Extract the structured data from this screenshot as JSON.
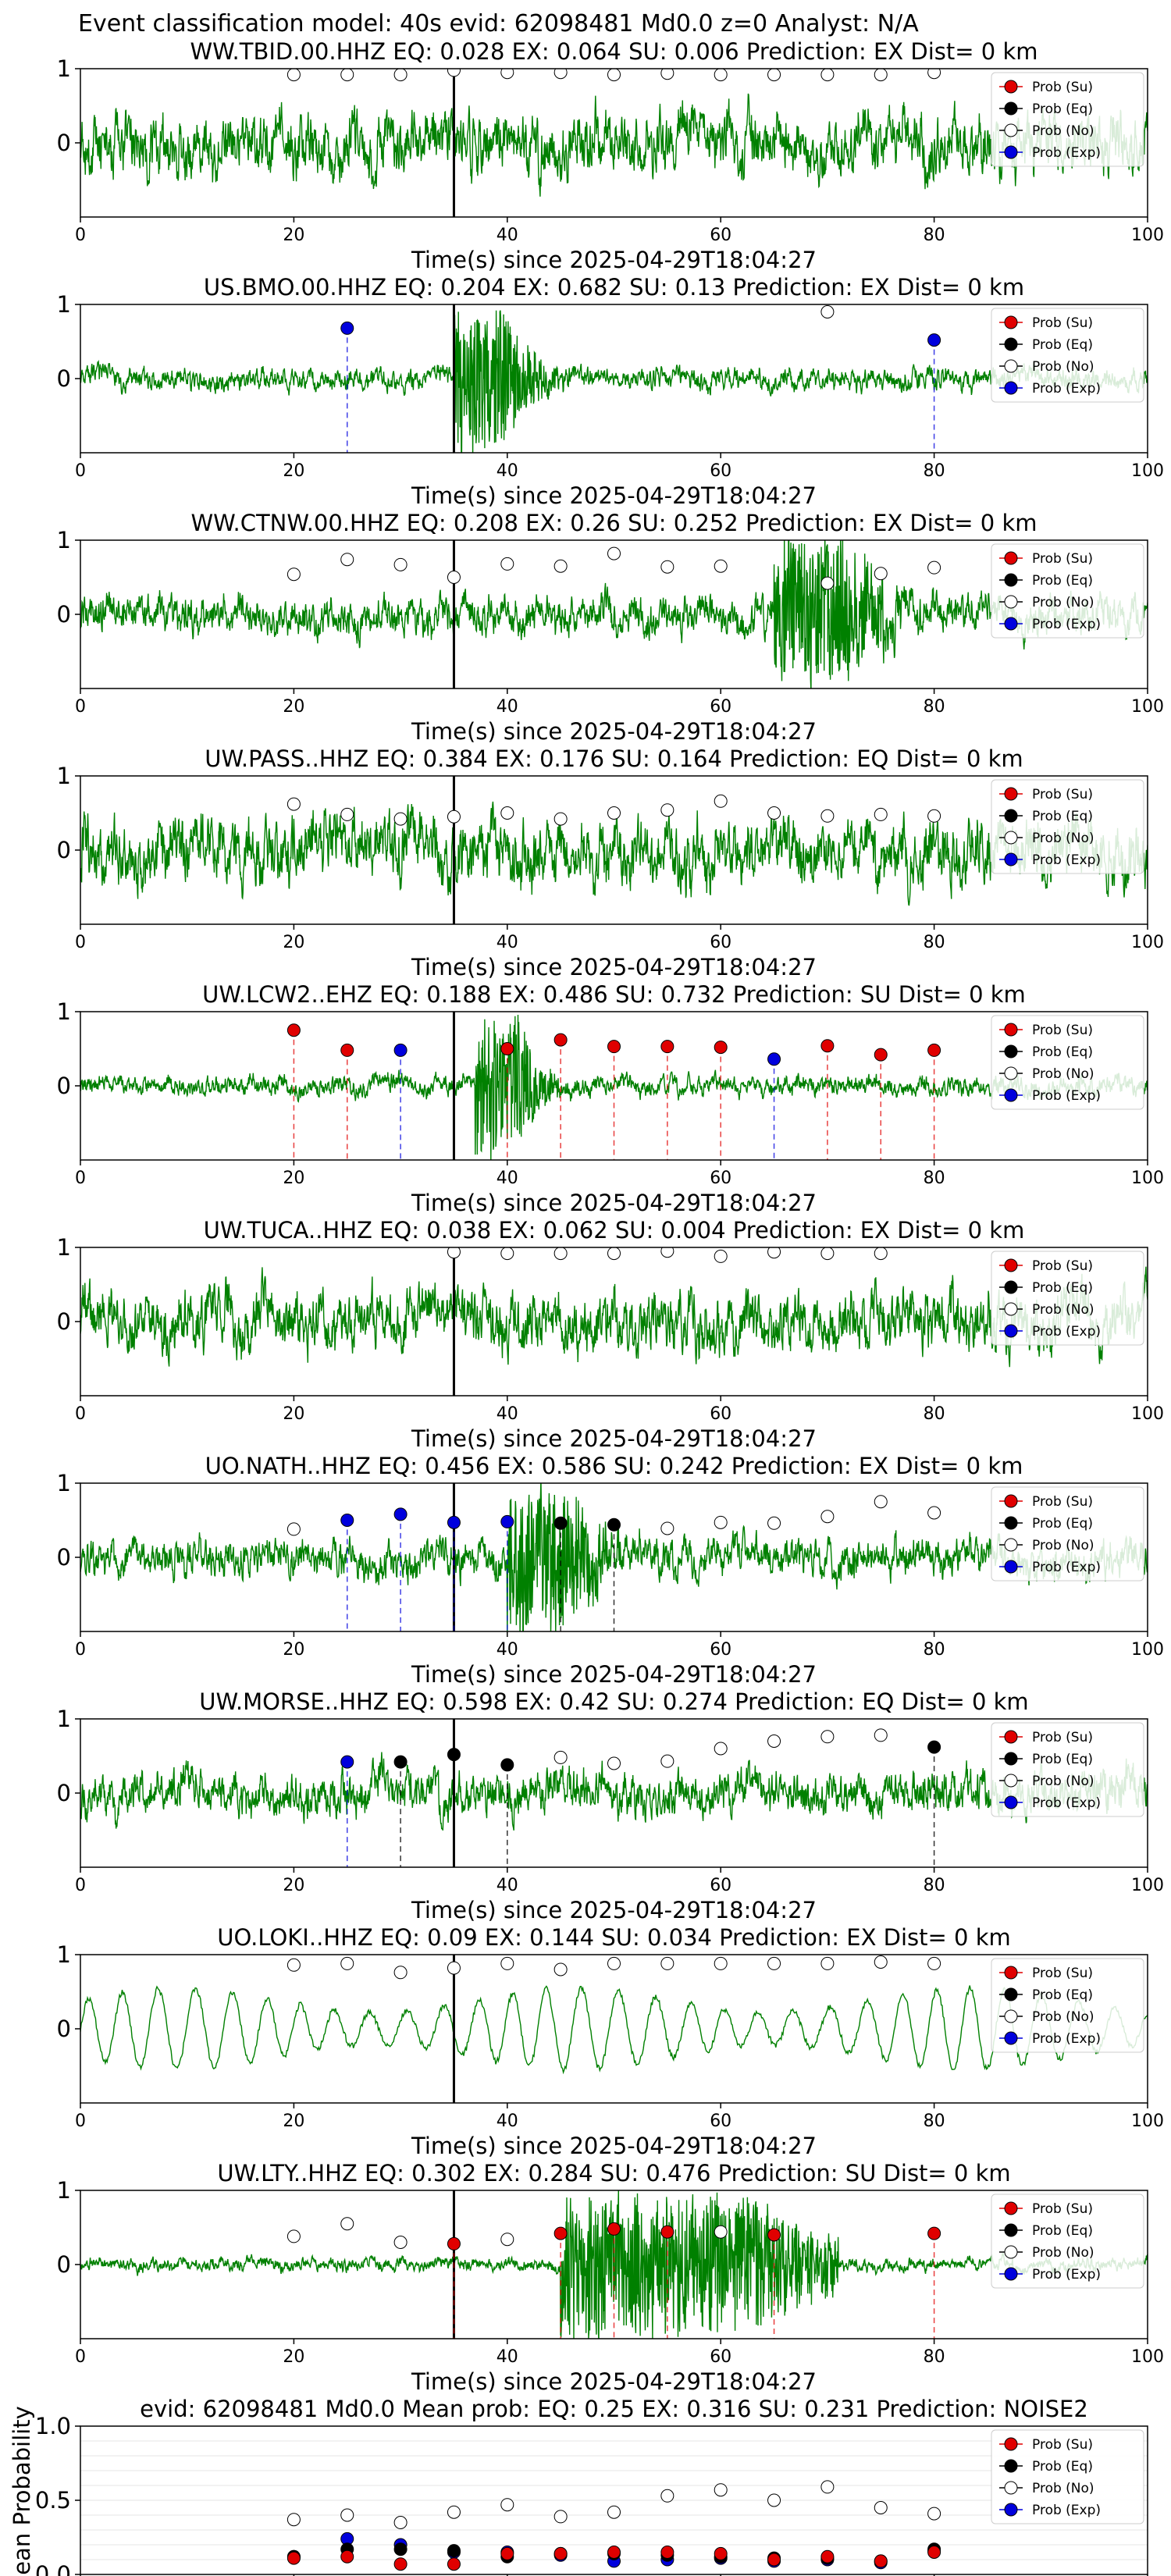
{
  "suptitle": "Event classification model: 40s evid: 62098481 Md0.0 z=0 Analyst: N/A",
  "colors": {
    "waveform": "#008000",
    "su": "#e00000",
    "eq": "#000000",
    "no": "#ffffff",
    "exp": "#0000dd",
    "pick": "#000000"
  },
  "legend": {
    "position": "top-right",
    "entries": [
      {
        "key": "su",
        "label": "Prob (Su)"
      },
      {
        "key": "eq",
        "label": "Prob (Eq)"
      },
      {
        "key": "no",
        "label": "Prob (No)"
      },
      {
        "key": "exp",
        "label": "Prob (Exp)"
      }
    ]
  },
  "chart_data": [
    {
      "type": "scatter",
      "title": "WW.TBID.00.HHZ   EQ: 0.028  EX: 0.064  SU: 0.006   Prediction: EX    Dist= 0 km",
      "xlabel": "Time(s) since 2025-04-29T18:04:27",
      "xlim": [
        0,
        100
      ],
      "ylim": [
        -1,
        1
      ],
      "xticks": [
        "0",
        "20",
        "40",
        "60",
        "80",
        "100"
      ],
      "yticks": [
        "0",
        "1"
      ],
      "pick_time": 35,
      "waveform_amp": 0.55,
      "waveform_style": "broadband",
      "points": [
        {
          "t": 20,
          "cls": "no",
          "p": 0.92
        },
        {
          "t": 25,
          "cls": "no",
          "p": 0.92
        },
        {
          "t": 30,
          "cls": "no",
          "p": 0.92
        },
        {
          "t": 35,
          "cls": "no",
          "p": 0.98
        },
        {
          "t": 40,
          "cls": "no",
          "p": 0.95
        },
        {
          "t": 45,
          "cls": "no",
          "p": 0.95
        },
        {
          "t": 50,
          "cls": "no",
          "p": 0.92
        },
        {
          "t": 55,
          "cls": "no",
          "p": 0.94
        },
        {
          "t": 60,
          "cls": "no",
          "p": 0.92
        },
        {
          "t": 65,
          "cls": "no",
          "p": 0.92
        },
        {
          "t": 70,
          "cls": "no",
          "p": 0.92
        },
        {
          "t": 75,
          "cls": "no",
          "p": 0.92
        },
        {
          "t": 80,
          "cls": "no",
          "p": 0.95
        }
      ]
    },
    {
      "type": "scatter",
      "title": "US.BMO.00.HHZ   EQ: 0.204  EX: 0.682  SU: 0.13   Prediction: EX    Dist= 0 km",
      "xlabel": "Time(s) since 2025-04-29T18:04:27",
      "xlim": [
        0,
        100
      ],
      "ylim": [
        -1,
        1
      ],
      "xticks": [
        "0",
        "20",
        "40",
        "60",
        "80",
        "100"
      ],
      "yticks": [
        "0",
        "1"
      ],
      "pick_time": 35,
      "waveform_amp": 0.2,
      "waveform_style": "burst",
      "burst": [
        35,
        40
      ],
      "points": [
        {
          "t": 25,
          "cls": "exp",
          "p": 0.68
        },
        {
          "t": 70,
          "cls": "no",
          "p": 0.9
        },
        {
          "t": 80,
          "cls": "exp",
          "p": 0.52
        }
      ]
    },
    {
      "type": "scatter",
      "title": "WW.CTNW.00.HHZ   EQ: 0.208  EX: 0.26  SU: 0.252   Prediction: EX    Dist= 0 km",
      "xlabel": "Time(s) since 2025-04-29T18:04:27",
      "xlim": [
        0,
        100
      ],
      "ylim": [
        -1,
        1
      ],
      "xticks": [
        "0",
        "20",
        "40",
        "60",
        "80",
        "100"
      ],
      "yticks": [
        "0",
        "1"
      ],
      "pick_time": 35,
      "waveform_amp": 0.35,
      "waveform_style": "burst",
      "burst": [
        65,
        72
      ],
      "points": [
        {
          "t": 20,
          "cls": "no",
          "p": 0.54
        },
        {
          "t": 25,
          "cls": "no",
          "p": 0.74
        },
        {
          "t": 30,
          "cls": "no",
          "p": 0.67
        },
        {
          "t": 35,
          "cls": "no",
          "p": 0.5
        },
        {
          "t": 40,
          "cls": "no",
          "p": 0.68
        },
        {
          "t": 45,
          "cls": "no",
          "p": 0.65
        },
        {
          "t": 50,
          "cls": "no",
          "p": 0.82
        },
        {
          "t": 55,
          "cls": "no",
          "p": 0.64
        },
        {
          "t": 60,
          "cls": "no",
          "p": 0.65
        },
        {
          "t": 70,
          "cls": "no",
          "p": 0.42
        },
        {
          "t": 75,
          "cls": "no",
          "p": 0.55
        },
        {
          "t": 80,
          "cls": "no",
          "p": 0.63
        }
      ]
    },
    {
      "type": "scatter",
      "title": "UW.PASS..HHZ   EQ: 0.384  EX: 0.176  SU: 0.164   Prediction: EQ    Dist= 0 km",
      "xlabel": "Time(s) since 2025-04-29T18:04:27",
      "xlim": [
        0,
        100
      ],
      "ylim": [
        -1,
        1
      ],
      "xticks": [
        "0",
        "20",
        "40",
        "60",
        "80",
        "100"
      ],
      "yticks": [
        "0",
        "1"
      ],
      "pick_time": 35,
      "waveform_amp": 0.6,
      "waveform_style": "broadband",
      "points": [
        {
          "t": 20,
          "cls": "no",
          "p": 0.62
        },
        {
          "t": 25,
          "cls": "no",
          "p": 0.48
        },
        {
          "t": 30,
          "cls": "no",
          "p": 0.42
        },
        {
          "t": 35,
          "cls": "no",
          "p": 0.45
        },
        {
          "t": 40,
          "cls": "no",
          "p": 0.5
        },
        {
          "t": 45,
          "cls": "no",
          "p": 0.42
        },
        {
          "t": 50,
          "cls": "no",
          "p": 0.5
        },
        {
          "t": 55,
          "cls": "no",
          "p": 0.54
        },
        {
          "t": 60,
          "cls": "no",
          "p": 0.66
        },
        {
          "t": 65,
          "cls": "no",
          "p": 0.5
        },
        {
          "t": 70,
          "cls": "no",
          "p": 0.46
        },
        {
          "t": 75,
          "cls": "no",
          "p": 0.48
        },
        {
          "t": 80,
          "cls": "no",
          "p": 0.46
        }
      ]
    },
    {
      "type": "scatter",
      "title": "UW.LCW2..EHZ   EQ: 0.188  EX: 0.486  SU: 0.732   Prediction: SU    Dist= 0 km",
      "xlabel": "Time(s) since 2025-04-29T18:04:27",
      "xlim": [
        0,
        100
      ],
      "ylim": [
        -1,
        1
      ],
      "xticks": [
        "0",
        "20",
        "40",
        "60",
        "80",
        "100"
      ],
      "yticks": [
        "0",
        "1"
      ],
      "pick_time": 35,
      "waveform_amp": 0.18,
      "waveform_style": "burst",
      "burst": [
        37,
        41
      ],
      "points": [
        {
          "t": 20,
          "cls": "su",
          "p": 0.75
        },
        {
          "t": 25,
          "cls": "su",
          "p": 0.48
        },
        {
          "t": 30,
          "cls": "exp",
          "p": 0.48
        },
        {
          "t": 40,
          "cls": "su",
          "p": 0.5
        },
        {
          "t": 45,
          "cls": "su",
          "p": 0.62
        },
        {
          "t": 50,
          "cls": "su",
          "p": 0.53
        },
        {
          "t": 55,
          "cls": "su",
          "p": 0.53
        },
        {
          "t": 60,
          "cls": "su",
          "p": 0.52
        },
        {
          "t": 65,
          "cls": "exp",
          "p": 0.36
        },
        {
          "t": 70,
          "cls": "su",
          "p": 0.54
        },
        {
          "t": 75,
          "cls": "su",
          "p": 0.42
        },
        {
          "t": 80,
          "cls": "su",
          "p": 0.48
        }
      ]
    },
    {
      "type": "scatter",
      "title": "UW.TUCA..HHZ   EQ: 0.038  EX: 0.062  SU: 0.004   Prediction: EX    Dist= 0 km",
      "xlabel": "Time(s) since 2025-04-29T18:04:27",
      "xlim": [
        0,
        100
      ],
      "ylim": [
        -1,
        1
      ],
      "xticks": [
        "0",
        "20",
        "40",
        "60",
        "80",
        "100"
      ],
      "yticks": [
        "0",
        "1"
      ],
      "pick_time": 35,
      "waveform_amp": 0.55,
      "waveform_style": "broadband",
      "points": [
        {
          "t": 35,
          "cls": "no",
          "p": 0.94
        },
        {
          "t": 40,
          "cls": "no",
          "p": 0.92
        },
        {
          "t": 45,
          "cls": "no",
          "p": 0.92
        },
        {
          "t": 50,
          "cls": "no",
          "p": 0.92
        },
        {
          "t": 55,
          "cls": "no",
          "p": 0.95
        },
        {
          "t": 60,
          "cls": "no",
          "p": 0.88
        },
        {
          "t": 65,
          "cls": "no",
          "p": 0.94
        },
        {
          "t": 70,
          "cls": "no",
          "p": 0.92
        },
        {
          "t": 75,
          "cls": "no",
          "p": 0.92
        }
      ]
    },
    {
      "type": "scatter",
      "title": "UO.NATH..HHZ   EQ: 0.456  EX: 0.586  SU: 0.242   Prediction: EX    Dist= 0 km",
      "xlabel": "Time(s) since 2025-04-29T18:04:27",
      "xlim": [
        0,
        100
      ],
      "ylim": [
        -1,
        1
      ],
      "xticks": [
        "0",
        "20",
        "40",
        "60",
        "80",
        "100"
      ],
      "yticks": [
        "0",
        "1"
      ],
      "pick_time": 35,
      "waveform_amp": 0.35,
      "waveform_style": "burst",
      "burst": [
        40,
        46
      ],
      "points": [
        {
          "t": 20,
          "cls": "no",
          "p": 0.38
        },
        {
          "t": 25,
          "cls": "exp",
          "p": 0.5
        },
        {
          "t": 30,
          "cls": "exp",
          "p": 0.58
        },
        {
          "t": 35,
          "cls": "exp",
          "p": 0.47
        },
        {
          "t": 40,
          "cls": "exp",
          "p": 0.48
        },
        {
          "t": 45,
          "cls": "eq",
          "p": 0.46
        },
        {
          "t": 50,
          "cls": "eq",
          "p": 0.44
        },
        {
          "t": 55,
          "cls": "no",
          "p": 0.39
        },
        {
          "t": 60,
          "cls": "no",
          "p": 0.47
        },
        {
          "t": 65,
          "cls": "no",
          "p": 0.46
        },
        {
          "t": 70,
          "cls": "no",
          "p": 0.55
        },
        {
          "t": 75,
          "cls": "no",
          "p": 0.75
        },
        {
          "t": 80,
          "cls": "no",
          "p": 0.6
        }
      ]
    },
    {
      "type": "scatter",
      "title": "UW.MORSE..HHZ   EQ: 0.598  EX: 0.42  SU: 0.274   Prediction: EQ    Dist= 0 km",
      "xlabel": "Time(s) since 2025-04-29T18:04:27",
      "xlim": [
        0,
        100
      ],
      "ylim": [
        -1,
        1
      ],
      "xticks": [
        "0",
        "20",
        "40",
        "60",
        "80",
        "100"
      ],
      "yticks": [
        "0",
        "1"
      ],
      "pick_time": 35,
      "waveform_amp": 0.4,
      "waveform_style": "broadband",
      "points": [
        {
          "t": 25,
          "cls": "exp",
          "p": 0.42
        },
        {
          "t": 30,
          "cls": "eq",
          "p": 0.42
        },
        {
          "t": 35,
          "cls": "eq",
          "p": 0.52
        },
        {
          "t": 40,
          "cls": "eq",
          "p": 0.38
        },
        {
          "t": 45,
          "cls": "no",
          "p": 0.48
        },
        {
          "t": 50,
          "cls": "no",
          "p": 0.4
        },
        {
          "t": 55,
          "cls": "no",
          "p": 0.43
        },
        {
          "t": 60,
          "cls": "no",
          "p": 0.6
        },
        {
          "t": 65,
          "cls": "no",
          "p": 0.7
        },
        {
          "t": 70,
          "cls": "no",
          "p": 0.76
        },
        {
          "t": 75,
          "cls": "no",
          "p": 0.78
        },
        {
          "t": 80,
          "cls": "eq",
          "p": 0.62
        }
      ]
    },
    {
      "type": "scatter",
      "title": "UO.LOKI..HHZ   EQ: 0.09  EX: 0.144  SU: 0.034   Prediction: EX    Dist= 0 km",
      "xlabel": "Time(s) since 2025-04-29T18:04:27",
      "xlim": [
        0,
        100
      ],
      "ylim": [
        -1,
        1
      ],
      "xticks": [
        "0",
        "20",
        "40",
        "60",
        "80",
        "100"
      ],
      "yticks": [
        "0",
        "1"
      ],
      "pick_time": 35,
      "waveform_amp": 0.55,
      "waveform_style": "smooth",
      "points": [
        {
          "t": 20,
          "cls": "no",
          "p": 0.86
        },
        {
          "t": 25,
          "cls": "no",
          "p": 0.88
        },
        {
          "t": 30,
          "cls": "no",
          "p": 0.76
        },
        {
          "t": 35,
          "cls": "no",
          "p": 0.82
        },
        {
          "t": 40,
          "cls": "no",
          "p": 0.88
        },
        {
          "t": 45,
          "cls": "no",
          "p": 0.8
        },
        {
          "t": 50,
          "cls": "no",
          "p": 0.88
        },
        {
          "t": 55,
          "cls": "no",
          "p": 0.88
        },
        {
          "t": 60,
          "cls": "no",
          "p": 0.88
        },
        {
          "t": 65,
          "cls": "no",
          "p": 0.88
        },
        {
          "t": 70,
          "cls": "no",
          "p": 0.88
        },
        {
          "t": 75,
          "cls": "no",
          "p": 0.9
        },
        {
          "t": 80,
          "cls": "no",
          "p": 0.88
        }
      ]
    },
    {
      "type": "scatter",
      "title": "UW.LTY..HHZ   EQ: 0.302  EX: 0.284  SU: 0.476   Prediction: SU    Dist= 0 km",
      "xlabel": "Time(s) since 2025-04-29T18:04:27",
      "xlim": [
        0,
        100
      ],
      "ylim": [
        -1,
        1
      ],
      "xticks": [
        "0",
        "20",
        "40",
        "60",
        "80",
        "100"
      ],
      "yticks": [
        "0",
        "1"
      ],
      "pick_time": 35,
      "waveform_amp": 0.12,
      "waveform_style": "burst",
      "burst": [
        45,
        63
      ],
      "points": [
        {
          "t": 20,
          "cls": "no",
          "p": 0.38
        },
        {
          "t": 25,
          "cls": "no",
          "p": 0.55
        },
        {
          "t": 30,
          "cls": "no",
          "p": 0.3
        },
        {
          "t": 35,
          "cls": "su",
          "p": 0.28
        },
        {
          "t": 40,
          "cls": "no",
          "p": 0.34
        },
        {
          "t": 45,
          "cls": "su",
          "p": 0.42
        },
        {
          "t": 50,
          "cls": "su",
          "p": 0.48
        },
        {
          "t": 55,
          "cls": "su",
          "p": 0.44
        },
        {
          "t": 60,
          "cls": "no",
          "p": 0.44
        },
        {
          "t": 65,
          "cls": "su",
          "p": 0.4
        },
        {
          "t": 80,
          "cls": "su",
          "p": 0.42
        }
      ]
    },
    {
      "type": "scatter",
      "title": "evid: 62098481  Md0.0   Mean prob:   EQ: 0.25  EX: 0.316  SU: 0.231   Prediction: NOISE2",
      "xlabel": "",
      "ylabel": "Mean Probability",
      "xlim": [
        0,
        100
      ],
      "ylim": [
        0,
        1
      ],
      "xticks": [
        "0",
        "20",
        "40",
        "60",
        "80",
        "100"
      ],
      "yticks": [
        "0.0",
        "0.5",
        "1.0"
      ],
      "grid": true,
      "series": [
        {
          "key": "no",
          "name": "Prob (No)",
          "x": [
            20,
            25,
            30,
            35,
            40,
            45,
            50,
            55,
            60,
            65,
            70,
            75,
            80
          ],
          "y": [
            0.37,
            0.4,
            0.35,
            0.42,
            0.47,
            0.39,
            0.42,
            0.53,
            0.57,
            0.5,
            0.59,
            0.45,
            0.41
          ]
        },
        {
          "key": "exp",
          "name": "Prob (Exp)",
          "x": [
            20,
            25,
            30,
            35,
            40,
            45,
            50,
            55,
            60,
            65,
            70,
            75,
            80
          ],
          "y": [
            0.12,
            0.24,
            0.2,
            0.15,
            0.15,
            0.13,
            0.09,
            0.1,
            0.11,
            0.09,
            0.1,
            0.08,
            0.16
          ]
        },
        {
          "key": "eq",
          "name": "Prob (Eq)",
          "x": [
            20,
            25,
            30,
            35,
            40,
            45,
            50,
            55,
            60,
            65,
            70,
            75,
            80
          ],
          "y": [
            0.12,
            0.17,
            0.17,
            0.16,
            0.12,
            0.14,
            0.14,
            0.13,
            0.12,
            0.11,
            0.11,
            0.09,
            0.17
          ]
        },
        {
          "key": "su",
          "name": "Prob (Su)",
          "x": [
            20,
            25,
            30,
            35,
            40,
            45,
            50,
            55,
            60,
            65,
            70,
            75,
            80
          ],
          "y": [
            0.11,
            0.12,
            0.07,
            0.07,
            0.14,
            0.14,
            0.15,
            0.15,
            0.14,
            0.1,
            0.12,
            0.09,
            0.15
          ]
        }
      ]
    }
  ]
}
